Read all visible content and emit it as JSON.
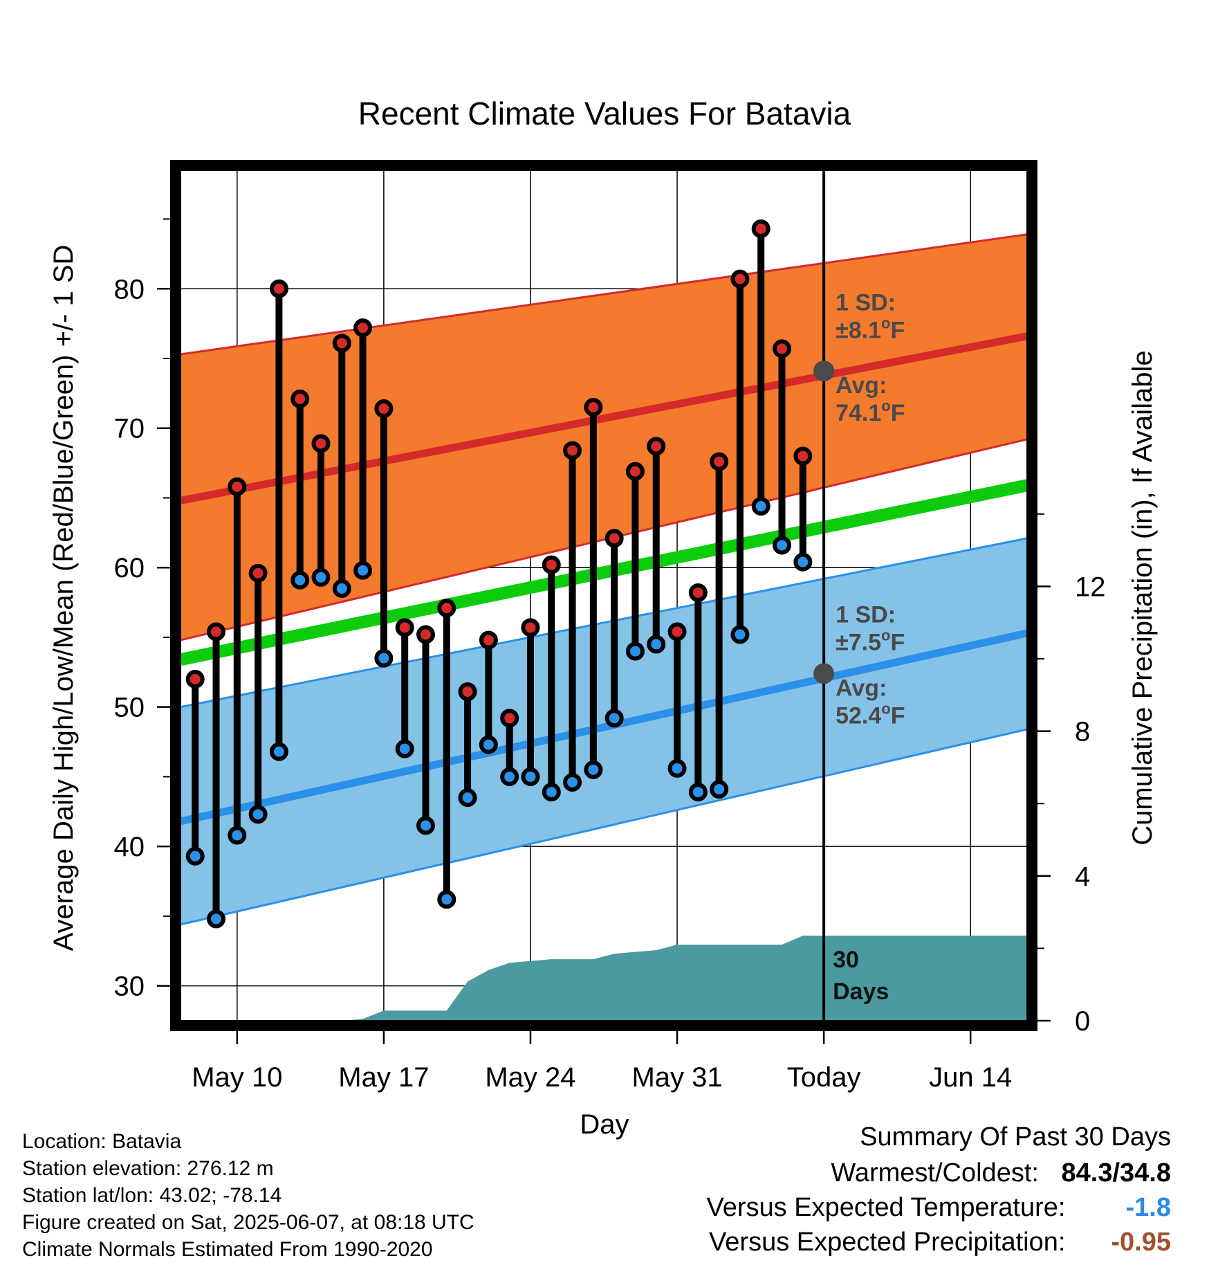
{
  "chart_data": {
    "type": "line",
    "title": "Recent Climate Values For Batavia",
    "xlabel": "Day",
    "ylabel": "Average Daily High/Low/Mean (Red/Blue/Green) +/- 1 SD",
    "y2label": "Cumulative Precipitation (in), If Available",
    "ylim": [
      27.5,
      88.5
    ],
    "y2lim": [
      0,
      23.5
    ],
    "yticks": [
      30,
      40,
      50,
      60,
      70,
      80
    ],
    "y2ticks": [
      0,
      4,
      8,
      12
    ],
    "x_tick_labels": [
      {
        "day": 10,
        "label": "May 10"
      },
      {
        "day": 17,
        "label": "May 17"
      },
      {
        "day": 24,
        "label": "May 24"
      },
      {
        "day": 31,
        "label": "May 31"
      },
      {
        "day": 38,
        "label": "Today"
      },
      {
        "day": 45,
        "label": "Jun 14"
      }
    ],
    "xlim_days": [
      7.3,
      47.7
    ],
    "grid": true,
    "colors": {
      "high": "#d42a2a",
      "low": "#2a90e8",
      "mean": "#0ccc0c",
      "high_band": "#f47b2d",
      "low_band": "#85c2e8",
      "precip": "#4a9aa0",
      "annotation": "#4a4a4a",
      "summary_temp": "#2a8ae8",
      "summary_precip": "#a0522d"
    },
    "normals": {
      "high_avg": {
        "start": 64.8,
        "end": 76.6
      },
      "high_sd_upper": {
        "start": 75.3,
        "end": 83.9
      },
      "high_sd_lower": {
        "start": 54.8,
        "end": 69.2
      },
      "low_avg": {
        "start": 41.8,
        "end": 55.3
      },
      "low_sd_upper": {
        "start": 50.0,
        "end": 62.1
      },
      "low_sd_lower": {
        "start": 34.4,
        "end": 48.4
      },
      "mean": {
        "start": 53.4,
        "end": 65.9
      }
    },
    "series": [
      {
        "name": "High",
        "days": [
          8,
          9,
          10,
          11,
          12,
          13,
          14,
          15,
          16,
          17,
          18,
          19,
          20,
          21,
          22,
          23,
          24,
          25,
          26,
          27,
          28,
          29,
          30,
          31,
          32,
          33,
          34,
          35,
          36,
          37
        ],
        "values": [
          52.0,
          55.4,
          65.8,
          59.6,
          80.0,
          72.1,
          68.9,
          76.1,
          77.2,
          71.4,
          55.7,
          55.2,
          57.1,
          51.1,
          54.8,
          49.2,
          55.7,
          60.2,
          68.4,
          71.5,
          62.1,
          66.9,
          68.7,
          55.4,
          58.2,
          67.6,
          80.7,
          84.3,
          75.7,
          68.0
        ]
      },
      {
        "name": "Low",
        "days": [
          8,
          9,
          10,
          11,
          12,
          13,
          14,
          15,
          16,
          17,
          18,
          19,
          20,
          21,
          22,
          23,
          24,
          25,
          26,
          27,
          28,
          29,
          30,
          31,
          32,
          33,
          34,
          35,
          36,
          37
        ],
        "values": [
          39.3,
          34.8,
          40.8,
          42.3,
          46.8,
          59.1,
          59.3,
          58.5,
          59.8,
          53.5,
          47.0,
          41.5,
          36.2,
          43.5,
          47.3,
          45.0,
          45.0,
          43.9,
          44.6,
          45.5,
          49.2,
          54.0,
          54.5,
          45.6,
          43.9,
          44.1,
          55.2,
          64.4,
          61.6,
          60.4
        ]
      },
      {
        "name": "Cumulative Precipitation",
        "axis": "y2",
        "x": [
          7.3,
          13.0,
          14.0,
          15.0,
          16.0,
          17.0,
          18.0,
          19.0,
          20.0,
          21.0,
          22.0,
          23.0,
          24.0,
          25.0,
          26.0,
          27.0,
          28.0,
          29.0,
          30.0,
          31.0,
          32.0,
          33.0,
          34.0,
          35.0,
          36.0,
          37.0,
          38.0,
          47.7
        ],
        "values": [
          0,
          0,
          0,
          0,
          0.05,
          0.28,
          0.28,
          0.28,
          0.28,
          1.08,
          1.4,
          1.6,
          1.65,
          1.7,
          1.7,
          1.7,
          1.85,
          1.9,
          1.95,
          2.1,
          2.1,
          2.1,
          2.1,
          2.1,
          2.1,
          2.35,
          2.35,
          2.35
        ]
      }
    ],
    "annotations": {
      "high_sd_line1": "1 SD:",
      "high_sd_line2": "±8.1",
      "high_avg_line1": "Avg:",
      "high_avg_line2": "74.1",
      "low_sd_line1": "1 SD:",
      "low_sd_line2": "±7.5",
      "low_avg_line1": "Avg:",
      "low_avg_line2": "52.4",
      "degree_unit": "o",
      "f_unit": "F",
      "days_line1": "30",
      "days_line2": "Days",
      "high_avg_value": 74.1,
      "low_avg_value": 52.4
    }
  },
  "info": {
    "location": "Location: Batavia",
    "elevation": "Station elevation: 276.12 m",
    "latlon": "Station lat/lon: 43.02; -78.14",
    "created": "Figure created on Sat, 2025-06-07, at 08:18 UTC",
    "normals": "Climate Normals Estimated From 1990-2020"
  },
  "summary": {
    "heading": "Summary Of Past 30 Days",
    "warmest_coldest_label": "Warmest/Coldest:",
    "warmest_coldest_value": "84.3/34.8",
    "temp_label": "Versus Expected Temperature:",
    "temp_value": "-1.8",
    "precip_label": "Versus Expected Precipitation:",
    "precip_value": "-0.95"
  }
}
